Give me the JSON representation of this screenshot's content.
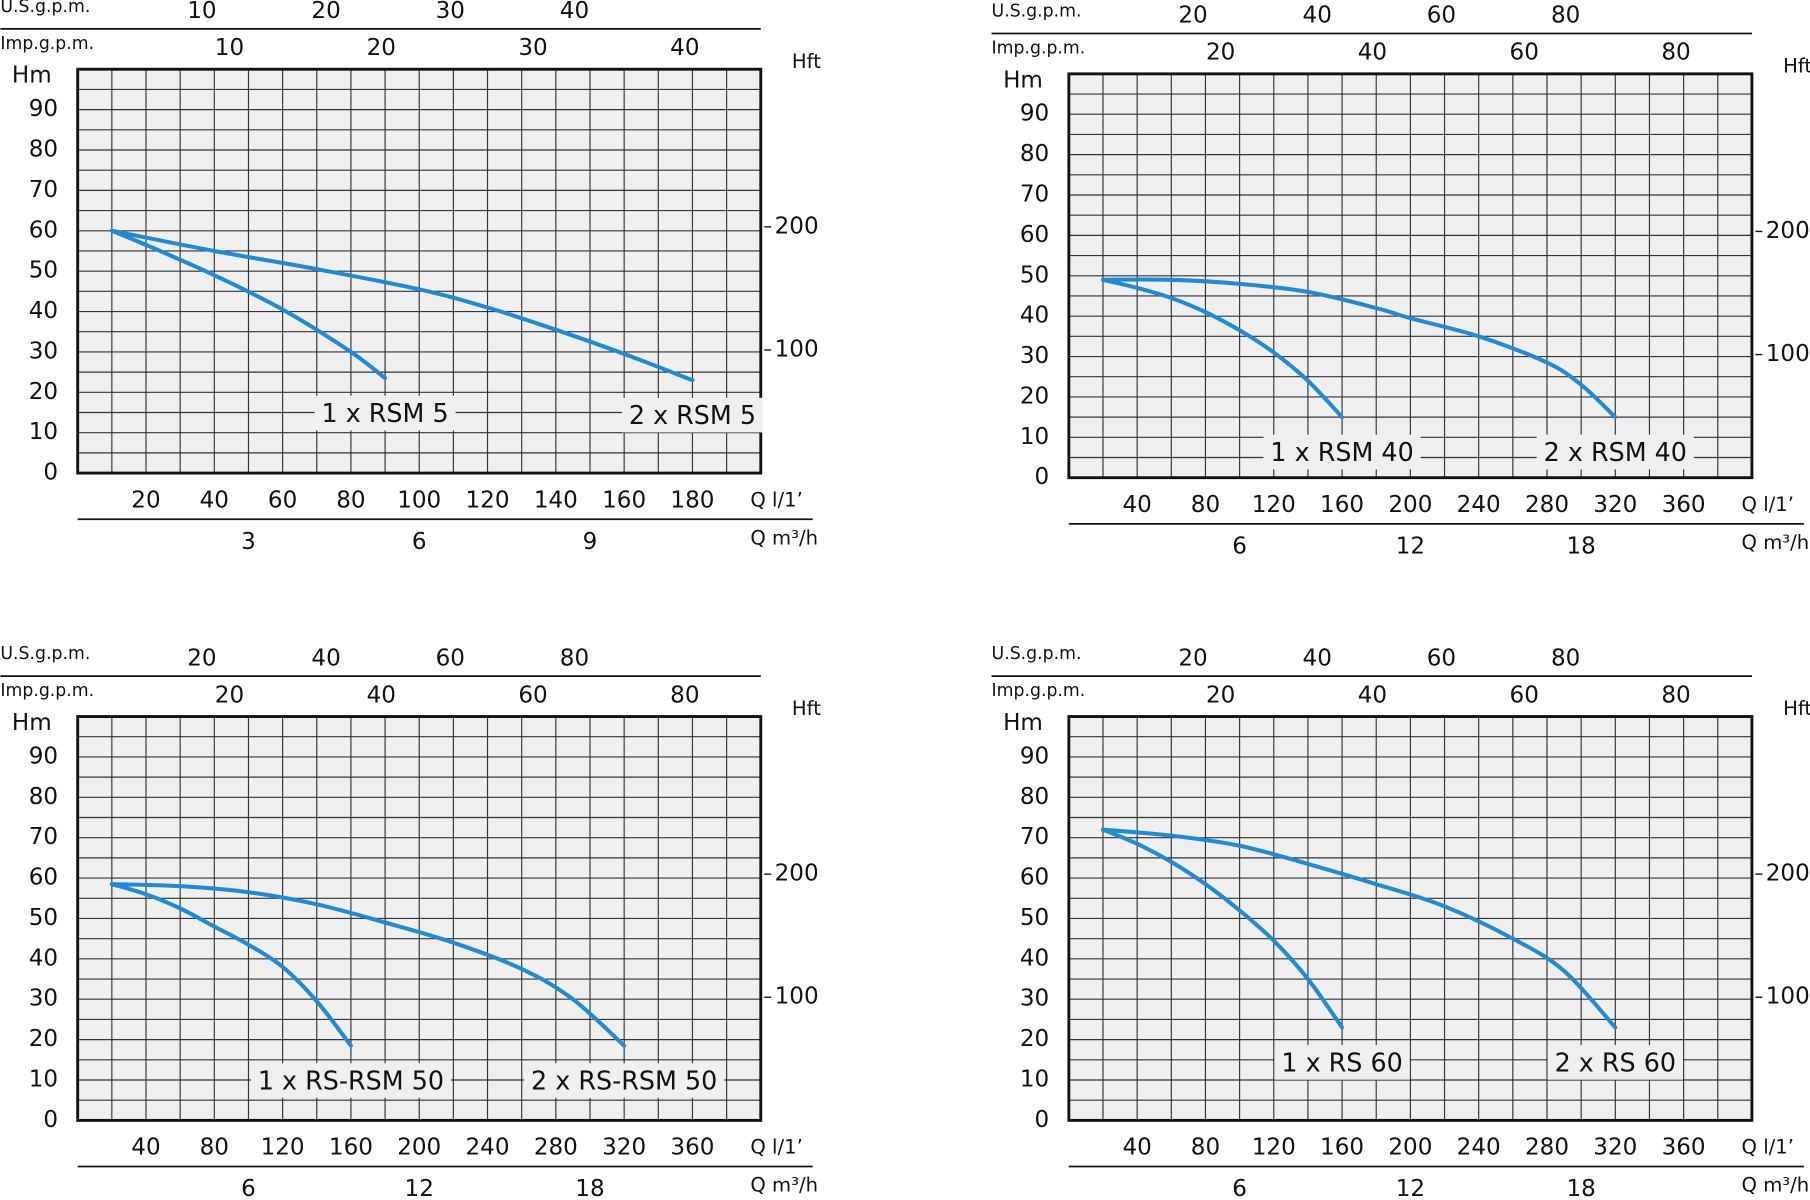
{
  "chart_data": [
    {
      "type": "line",
      "xlabel": "Q l/1’",
      "ylabel": "Hm",
      "y2label": "Hft",
      "xlim": [
        0,
        200
      ],
      "xticks": [
        20,
        40,
        60,
        80,
        100,
        120,
        140,
        160,
        180
      ],
      "ylim": [
        0,
        100
      ],
      "yticks": [
        0,
        10,
        20,
        30,
        40,
        50,
        60,
        70,
        80,
        90
      ],
      "y2lim": [
        0,
        328
      ],
      "y2ticks": [
        100,
        200
      ],
      "extra_x_axes": [
        {
          "side": "bottom",
          "label": "Q m³/h",
          "lim": [
            0,
            12
          ],
          "ticks": [
            3,
            6,
            9
          ]
        },
        {
          "side": "top",
          "label": "Imp.g.p.m.",
          "lim": [
            0,
            45
          ],
          "ticks": [
            10,
            20,
            30,
            40
          ]
        },
        {
          "side": "top",
          "label": "U.S.g.p.m.",
          "lim": [
            0,
            55
          ],
          "ticks": [
            10,
            20,
            30,
            40
          ]
        }
      ],
      "grid": true,
      "minor_grid": 2,
      "series": [
        {
          "name": "1 x RSM 5",
          "color": "#1f8ad8",
          "x": [
            10,
            20,
            40,
            60,
            80,
            90
          ],
          "values": [
            60,
            56.5,
            49,
            40.5,
            30,
            23.5
          ]
        },
        {
          "name": "2 x RSM 5",
          "color": "#1f8ad8",
          "x": [
            10,
            40,
            70,
            100,
            120,
            140,
            160,
            180
          ],
          "values": [
            60,
            55,
            50.5,
            45.5,
            41,
            35.5,
            29.5,
            23
          ]
        }
      ]
    },
    {
      "type": "line",
      "xlabel": "Q l/1’",
      "ylabel": "Hm",
      "y2label": "Hft",
      "xlim": [
        0,
        400
      ],
      "xticks": [
        40,
        80,
        120,
        160,
        200,
        240,
        280,
        320,
        360
      ],
      "ylim": [
        0,
        100
      ],
      "yticks": [
        0,
        10,
        20,
        30,
        40,
        50,
        60,
        70,
        80,
        90
      ],
      "y2lim": [
        0,
        328
      ],
      "y2ticks": [
        100,
        200
      ],
      "extra_x_axes": [
        {
          "side": "bottom",
          "label": "Q m³/h",
          "lim": [
            0,
            24
          ],
          "ticks": [
            6,
            12,
            18
          ]
        },
        {
          "side": "top",
          "label": "Imp.g.p.m.",
          "lim": [
            0,
            90
          ],
          "ticks": [
            20,
            40,
            60,
            80
          ]
        },
        {
          "side": "top",
          "label": "U.S.g.p.m.",
          "lim": [
            0,
            110
          ],
          "ticks": [
            20,
            40,
            60,
            80
          ]
        }
      ],
      "grid": true,
      "minor_grid": 2,
      "series": [
        {
          "name": "1 x RSM 40",
          "color": "#1f8ad8",
          "x": [
            20,
            40,
            60,
            80,
            100,
            120,
            140,
            160
          ],
          "values": [
            49,
            47,
            44.5,
            41,
            36.5,
            31,
            24,
            15
          ]
        },
        {
          "name": "2 x RSM 40",
          "color": "#1f8ad8",
          "x": [
            20,
            60,
            100,
            140,
            180,
            200,
            240,
            280,
            300,
            320
          ],
          "values": [
            49,
            49,
            48,
            46,
            42,
            39.5,
            35,
            28.5,
            23,
            15
          ]
        }
      ]
    },
    {
      "type": "line",
      "xlabel": "Q l/1’",
      "ylabel": "Hm",
      "y2label": "Hft",
      "xlim": [
        0,
        400
      ],
      "xticks": [
        40,
        80,
        120,
        160,
        200,
        240,
        280,
        320,
        360
      ],
      "ylim": [
        0,
        100
      ],
      "yticks": [
        0,
        10,
        20,
        30,
        40,
        50,
        60,
        70,
        80,
        90
      ],
      "y2lim": [
        0,
        328
      ],
      "y2ticks": [
        100,
        200
      ],
      "extra_x_axes": [
        {
          "side": "bottom",
          "label": "Q m³/h",
          "lim": [
            0,
            24
          ],
          "ticks": [
            6,
            12,
            18
          ]
        },
        {
          "side": "top",
          "label": "Imp.g.p.m.",
          "lim": [
            0,
            90
          ],
          "ticks": [
            20,
            40,
            60,
            80
          ]
        },
        {
          "side": "top",
          "label": "U.S.g.p.m.",
          "lim": [
            0,
            110
          ],
          "ticks": [
            20,
            40,
            60,
            80
          ]
        }
      ],
      "grid": true,
      "minor_grid": 2,
      "series": [
        {
          "name": "1 x RS-RSM 50",
          "color": "#1f8ad8",
          "x": [
            20,
            40,
            60,
            80,
            100,
            120,
            140,
            160
          ],
          "values": [
            58.5,
            56,
            52.5,
            48,
            43.5,
            38,
            29.5,
            18.5
          ]
        },
        {
          "name": "2 x RS-RSM 50",
          "color": "#1f8ad8",
          "x": [
            20,
            60,
            100,
            140,
            180,
            220,
            260,
            290,
            320
          ],
          "values": [
            58.5,
            58,
            56.5,
            53.5,
            49,
            44,
            37.5,
            30,
            18.5
          ]
        }
      ]
    },
    {
      "type": "line",
      "xlabel": "Q l/1’",
      "ylabel": "Hm",
      "y2label": "Hft",
      "xlim": [
        0,
        400
      ],
      "xticks": [
        40,
        80,
        120,
        160,
        200,
        240,
        280,
        320,
        360
      ],
      "ylim": [
        0,
        100
      ],
      "yticks": [
        0,
        10,
        20,
        30,
        40,
        50,
        60,
        70,
        80,
        90
      ],
      "y2lim": [
        0,
        328
      ],
      "y2ticks": [
        100,
        200
      ],
      "extra_x_axes": [
        {
          "side": "bottom",
          "label": "Q m³/h",
          "lim": [
            0,
            24
          ],
          "ticks": [
            6,
            12,
            18
          ]
        },
        {
          "side": "top",
          "label": "Imp.g.p.m.",
          "lim": [
            0,
            90
          ],
          "ticks": [
            20,
            40,
            60,
            80
          ]
        },
        {
          "side": "top",
          "label": "U.S.g.p.m.",
          "lim": [
            0,
            110
          ],
          "ticks": [
            20,
            40,
            60,
            80
          ]
        }
      ],
      "grid": true,
      "minor_grid": 2,
      "series": [
        {
          "name": "1 x RS 60",
          "color": "#1f8ad8",
          "x": [
            20,
            40,
            60,
            80,
            100,
            120,
            140,
            160
          ],
          "values": [
            72,
            68.5,
            64,
            58.5,
            52,
            44.5,
            35,
            23
          ]
        },
        {
          "name": "2 x RS 60",
          "color": "#1f8ad8",
          "x": [
            20,
            60,
            100,
            140,
            180,
            220,
            260,
            290,
            320
          ],
          "values": [
            72,
            70.5,
            68,
            63.5,
            58.5,
            53,
            45,
            37,
            23
          ]
        }
      ]
    }
  ]
}
